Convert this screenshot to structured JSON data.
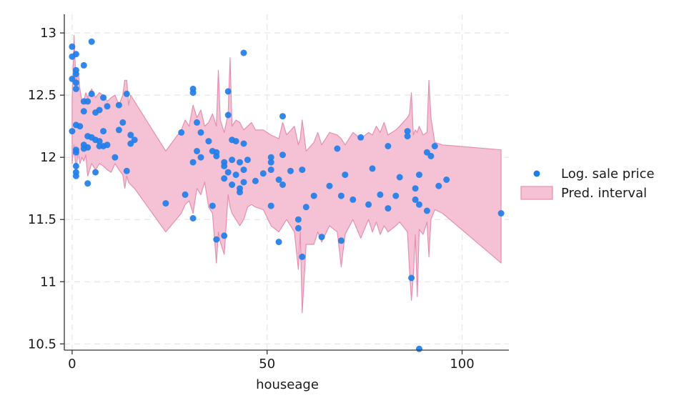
{
  "chart_data": {
    "type": "scatter",
    "title": "",
    "xlabel": "houseage",
    "ylabel": "",
    "xlim": [
      -2,
      112
    ],
    "ylim": [
      10.45,
      13.15
    ],
    "xticks": [
      0,
      50,
      100
    ],
    "yticks": [
      10.5,
      11,
      11.5,
      12,
      12.5,
      13
    ],
    "ytick_labels": [
      "10.5",
      "11",
      "11.5",
      "12",
      "12.5",
      "13"
    ],
    "xtick_labels": [
      "0",
      "50",
      "100"
    ],
    "grid": true,
    "legend_position": "right",
    "colors": {
      "points": "#1f7ee8",
      "band_fill": "#f4c2d4",
      "band_edge": "#e58fb2",
      "grid": "#e6e6e6",
      "axis": "#333333"
    },
    "series": [
      {
        "name": "Log. sale price",
        "kind": "points",
        "points": [
          [
            0,
            12.89
          ],
          [
            0,
            12.81
          ],
          [
            0,
            12.63
          ],
          [
            0,
            12.21
          ],
          [
            1,
            12.83
          ],
          [
            1,
            12.7
          ],
          [
            1,
            12.67
          ],
          [
            1,
            12.6
          ],
          [
            1,
            12.55
          ],
          [
            1,
            12.26
          ],
          [
            1,
            12.06
          ],
          [
            1,
            12.04
          ],
          [
            1,
            11.93
          ],
          [
            1,
            11.88
          ],
          [
            1,
            11.85
          ],
          [
            2,
            12.25
          ],
          [
            3,
            12.74
          ],
          [
            3,
            12.45
          ],
          [
            3,
            12.37
          ],
          [
            3,
            12.1
          ],
          [
            3,
            12.07
          ],
          [
            4,
            12.45
          ],
          [
            4,
            12.17
          ],
          [
            4,
            12.08
          ],
          [
            4,
            11.79
          ],
          [
            5,
            12.93
          ],
          [
            5,
            12.51
          ],
          [
            5,
            12.16
          ],
          [
            6,
            12.36
          ],
          [
            6,
            12.14
          ],
          [
            6,
            11.88
          ],
          [
            7,
            12.38
          ],
          [
            7,
            12.13
          ],
          [
            7,
            12.09
          ],
          [
            8,
            12.48
          ],
          [
            8,
            12.21
          ],
          [
            8,
            12.09
          ],
          [
            9,
            12.41
          ],
          [
            9,
            12.1
          ],
          [
            11,
            12.0
          ],
          [
            12,
            12.42
          ],
          [
            12,
            12.22
          ],
          [
            13,
            12.28
          ],
          [
            14,
            12.51
          ],
          [
            14,
            11.89
          ],
          [
            15,
            12.18
          ],
          [
            15,
            12.11
          ],
          [
            16,
            12.14
          ],
          [
            24,
            11.63
          ],
          [
            28,
            12.2
          ],
          [
            29,
            11.7
          ],
          [
            31,
            12.55
          ],
          [
            31,
            12.52
          ],
          [
            31,
            11.96
          ],
          [
            31,
            11.51
          ],
          [
            32,
            12.28
          ],
          [
            32,
            12.05
          ],
          [
            33,
            12.2
          ],
          [
            33,
            12.0
          ],
          [
            35,
            12.13
          ],
          [
            36,
            12.05
          ],
          [
            36,
            11.61
          ],
          [
            37,
            12.04
          ],
          [
            37,
            12.01
          ],
          [
            37,
            11.34
          ],
          [
            39,
            11.96
          ],
          [
            39,
            11.93
          ],
          [
            39,
            11.83
          ],
          [
            39,
            11.37
          ],
          [
            40,
            12.53
          ],
          [
            40,
            12.34
          ],
          [
            40,
            11.88
          ],
          [
            41,
            12.14
          ],
          [
            41,
            11.98
          ],
          [
            41,
            11.78
          ],
          [
            42,
            12.13
          ],
          [
            42,
            11.86
          ],
          [
            43,
            11.96
          ],
          [
            43,
            11.75
          ],
          [
            43,
            11.72
          ],
          [
            44,
            12.84
          ],
          [
            44,
            12.11
          ],
          [
            44,
            11.9
          ],
          [
            44,
            11.8
          ],
          [
            45,
            11.98
          ],
          [
            47,
            11.81
          ],
          [
            49,
            11.87
          ],
          [
            51,
            12.0
          ],
          [
            51,
            11.96
          ],
          [
            51,
            11.9
          ],
          [
            51,
            11.61
          ],
          [
            53,
            11.82
          ],
          [
            53,
            11.32
          ],
          [
            54,
            12.33
          ],
          [
            54,
            12.02
          ],
          [
            54,
            11.78
          ],
          [
            56,
            11.89
          ],
          [
            58,
            11.5
          ],
          [
            58,
            11.43
          ],
          [
            59,
            11.9
          ],
          [
            59,
            11.2
          ],
          [
            60,
            11.6
          ],
          [
            62,
            11.69
          ],
          [
            64,
            11.36
          ],
          [
            66,
            11.77
          ],
          [
            68,
            12.07
          ],
          [
            69,
            11.69
          ],
          [
            69,
            11.33
          ],
          [
            70,
            11.86
          ],
          [
            72,
            11.66
          ],
          [
            74,
            12.16
          ],
          [
            76,
            11.62
          ],
          [
            77,
            11.91
          ],
          [
            79,
            11.7
          ],
          [
            81,
            12.09
          ],
          [
            81,
            11.59
          ],
          [
            83,
            11.69
          ],
          [
            84,
            11.84
          ],
          [
            86,
            12.21
          ],
          [
            86,
            12.17
          ],
          [
            87,
            11.03
          ],
          [
            88,
            11.75
          ],
          [
            88,
            11.66
          ],
          [
            89,
            11.86
          ],
          [
            89,
            11.62
          ],
          [
            89,
            10.46
          ],
          [
            91,
            12.04
          ],
          [
            91,
            11.57
          ],
          [
            92,
            12.01
          ],
          [
            93,
            12.09
          ],
          [
            94,
            11.77
          ],
          [
            96,
            11.82
          ],
          [
            110,
            11.55
          ]
        ]
      },
      {
        "name": "Pred. interval",
        "kind": "band",
        "x": [
          0,
          0.5,
          1,
          1.5,
          2,
          2.5,
          3,
          3.5,
          4,
          5,
          6,
          7,
          8,
          9,
          10,
          11,
          12,
          13,
          13.5,
          14,
          14.5,
          15,
          16,
          24,
          28,
          29,
          30,
          31,
          32,
          33,
          34,
          35,
          36,
          37,
          37.5,
          38,
          39,
          40,
          40.5,
          41,
          42,
          43,
          44,
          45,
          46,
          47,
          49,
          51,
          53,
          54,
          55,
          57,
          58,
          58.5,
          59,
          60,
          62,
          63,
          64,
          66,
          68,
          69,
          70,
          72,
          74,
          76,
          77,
          78,
          79,
          80,
          81,
          83,
          84,
          86,
          86.5,
          87,
          87.5,
          88,
          88.5,
          89,
          90,
          91,
          91.5,
          92,
          93,
          95,
          110
        ],
        "lower": [
          11.95,
          12.1,
          11.88,
          12.05,
          11.95,
          12.0,
          11.97,
          12.02,
          11.85,
          11.95,
          11.9,
          11.95,
          11.93,
          11.9,
          11.88,
          11.95,
          11.9,
          11.86,
          11.75,
          11.85,
          11.8,
          11.78,
          11.75,
          11.4,
          11.55,
          11.62,
          11.65,
          11.55,
          11.75,
          11.7,
          11.8,
          11.6,
          11.55,
          11.15,
          11.4,
          11.32,
          11.22,
          11.7,
          11.6,
          11.55,
          11.5,
          11.45,
          11.5,
          11.6,
          11.62,
          11.6,
          11.58,
          11.45,
          11.4,
          11.45,
          11.5,
          11.4,
          11.1,
          11.4,
          10.75,
          11.3,
          11.3,
          11.4,
          11.32,
          11.45,
          11.4,
          11.12,
          11.38,
          11.5,
          11.35,
          11.5,
          11.4,
          11.48,
          11.38,
          11.45,
          11.4,
          11.45,
          11.48,
          11.4,
          11.1,
          10.85,
          11.05,
          11.38,
          10.88,
          11.42,
          11.38,
          11.48,
          11.2,
          11.5,
          11.58,
          11.55,
          11.15
        ],
        "upper": [
          12.45,
          12.98,
          12.58,
          12.7,
          12.55,
          12.45,
          12.45,
          12.52,
          12.48,
          12.55,
          12.48,
          12.52,
          12.5,
          12.45,
          12.48,
          12.5,
          12.42,
          12.5,
          12.62,
          12.62,
          12.42,
          12.5,
          12.45,
          12.05,
          12.22,
          12.3,
          12.25,
          12.42,
          12.32,
          12.38,
          12.25,
          12.28,
          12.35,
          12.25,
          12.7,
          12.3,
          12.2,
          12.35,
          12.8,
          12.25,
          12.3,
          12.28,
          12.22,
          12.25,
          12.28,
          12.22,
          12.22,
          12.18,
          12.15,
          12.28,
          12.18,
          12.25,
          12.1,
          12.15,
          12.3,
          12.05,
          12.12,
          12.2,
          12.1,
          12.2,
          12.18,
          12.15,
          12.1,
          12.2,
          12.15,
          12.2,
          12.18,
          12.25,
          12.2,
          12.28,
          12.18,
          12.22,
          12.25,
          12.32,
          12.35,
          12.52,
          12.18,
          12.22,
          12.2,
          12.25,
          12.18,
          12.2,
          12.62,
          12.32,
          12.12,
          12.1,
          12.06
        ]
      }
    ]
  }
}
